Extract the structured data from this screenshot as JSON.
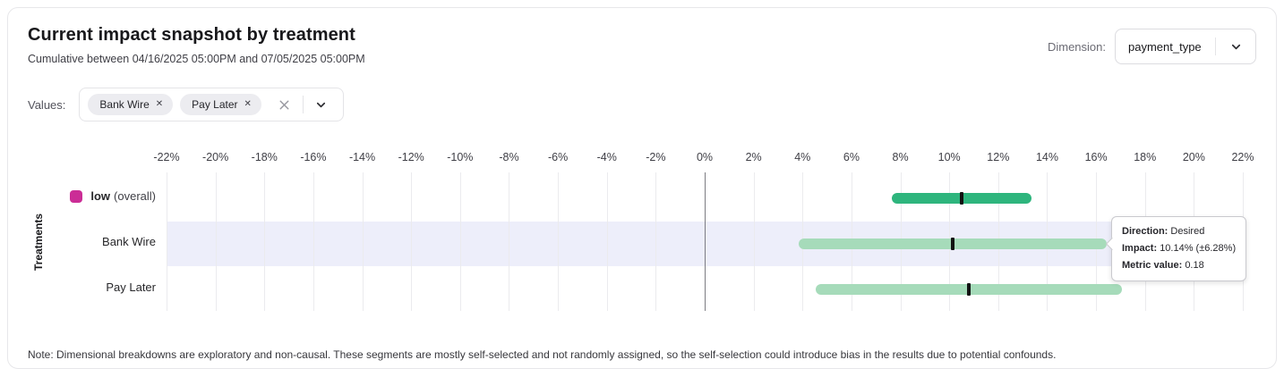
{
  "header": {
    "title": "Current impact snapshot by treatment",
    "subtitle": "Cumulative between 04/16/2025 05:00PM and 07/05/2025 05:00PM",
    "dimension_label": "Dimension:",
    "dimension_value": "payment_type"
  },
  "filters": {
    "label": "Values:",
    "chips": [
      {
        "label": "Bank Wire"
      },
      {
        "label": "Pay Later"
      }
    ]
  },
  "chart_data": {
    "type": "bar",
    "subtype": "horizontal-range-with-center-marker",
    "title": "Current impact snapshot by treatment",
    "xlabel": "",
    "ylabel": "Treatments",
    "xlim": [
      -22,
      22
    ],
    "grid": "vertical",
    "x_tick_values": [
      -22,
      -20,
      -18,
      -16,
      -14,
      -12,
      -10,
      -8,
      -6,
      -4,
      -2,
      0,
      2,
      4,
      6,
      8,
      10,
      12,
      14,
      16,
      18,
      20,
      22
    ],
    "x_ticks": [
      "-22%",
      "-20%",
      "-18%",
      "-16%",
      "-14%",
      "-12%",
      "-10%",
      "-8%",
      "-6%",
      "-4%",
      "-2%",
      "0%",
      "2%",
      "4%",
      "6%",
      "8%",
      "10%",
      "12%",
      "14%",
      "16%",
      "18%",
      "20%",
      "22%"
    ],
    "rows": [
      {
        "label": "low",
        "suffix": "(overall)",
        "bold_label": true,
        "legend_color": "#cb2d96",
        "impact_pct": 10.5,
        "ci_pct": 2.85,
        "bar_color": "#2eb57d",
        "highlighted": false
      },
      {
        "label": "Bank Wire",
        "suffix": "",
        "bold_label": false,
        "legend_color": null,
        "impact_pct": 10.14,
        "ci_pct": 6.28,
        "bar_color": "#a6dbba",
        "highlighted": true
      },
      {
        "label": "Pay Later",
        "suffix": "",
        "bold_label": false,
        "legend_color": null,
        "impact_pct": 10.8,
        "ci_pct": 6.25,
        "bar_color": "#a6dbba",
        "highlighted": false
      }
    ]
  },
  "tooltip": {
    "items": [
      {
        "label": "Direction:",
        "value": "Desired"
      },
      {
        "label": "Impact:",
        "value": "10.14% (±6.28%)"
      },
      {
        "label": "Metric value:",
        "value": "0.18"
      }
    ]
  },
  "note": "Note: Dimensional breakdowns are exploratory and non-causal. These segments are mostly self-selected and not randomly assigned, so the self-selection could introduce bias in the results due to potential confounds.",
  "colors": {
    "band_highlight": "#edeefa",
    "zero_line": "#7c7c82",
    "gridline": "#ebebee",
    "marker": "#121212"
  }
}
